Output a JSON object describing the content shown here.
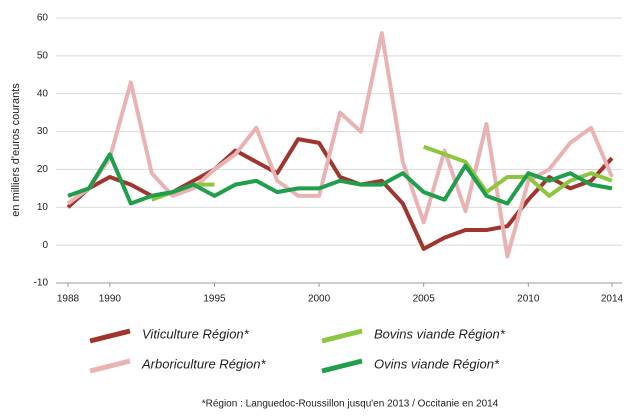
{
  "chart_data": {
    "type": "line",
    "y_label": "en milliers d'euros courants",
    "footnote": "*Région : Languedoc-Roussillon jusqu'en 2013 / Occitanie en 2014",
    "x": [
      1988,
      1989,
      1990,
      1991,
      1992,
      1993,
      1994,
      1995,
      1996,
      1997,
      1998,
      1999,
      2000,
      2001,
      2002,
      2003,
      2004,
      2005,
      2006,
      2007,
      2008,
      2009,
      2010,
      2011,
      2012,
      2013,
      2014
    ],
    "xlim": [
      1988,
      2014
    ],
    "xticks": [
      1988,
      1990,
      1995,
      2000,
      2005,
      2010,
      2014
    ],
    "ylim": [
      -10,
      60
    ],
    "yticks": [
      -10,
      0,
      10,
      20,
      30,
      40,
      50,
      60
    ],
    "grid": true,
    "series": [
      {
        "name": "Viticulture Région*",
        "color": "#a0342f",
        "values": [
          10,
          15,
          18,
          16,
          13,
          14,
          17,
          20,
          25,
          22,
          19,
          28,
          27,
          18,
          16,
          17,
          11,
          -1,
          2,
          4,
          4,
          5,
          12,
          18,
          15,
          17,
          23
        ]
      },
      {
        "name": "Arboriculture Région*",
        "color": "#eab3b3",
        "values": [
          11,
          15,
          23,
          43,
          19,
          13,
          15,
          20,
          24,
          31,
          17,
          13,
          13,
          35,
          30,
          56,
          22,
          6,
          25,
          9,
          32,
          -3,
          17,
          20,
          27,
          31,
          18
        ]
      },
      {
        "name": "Bovins viande Région*",
        "color": "#8dc63f",
        "values": [
          null,
          null,
          null,
          null,
          12,
          14,
          16,
          16,
          null,
          null,
          null,
          null,
          null,
          null,
          null,
          null,
          null,
          26,
          24,
          22,
          14,
          18,
          18,
          13,
          17,
          19,
          17
        ]
      },
      {
        "name": "Ovins viande Région*",
        "color": "#1f9e4b",
        "values": [
          13,
          15,
          24,
          11,
          13,
          14,
          16,
          13,
          16,
          17,
          14,
          15,
          15,
          17,
          16,
          16,
          19,
          14,
          12,
          21,
          13,
          11,
          19,
          17,
          19,
          16,
          15
        ]
      }
    ]
  }
}
